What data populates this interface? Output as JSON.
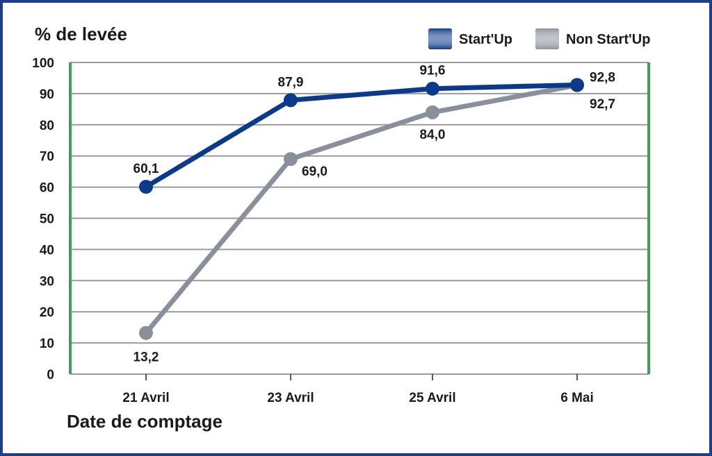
{
  "chart_data": {
    "type": "line",
    "ylabel": "% de levée",
    "xlabel": "Date de comptage",
    "categories": [
      "21 Avril",
      "23 Avril",
      "25 Avril",
      "6 Mai"
    ],
    "ylim": [
      0,
      100
    ],
    "yticks": [
      0,
      10,
      20,
      30,
      40,
      50,
      60,
      70,
      80,
      90,
      100
    ],
    "grid": true,
    "legend_position": "top-right",
    "series": [
      {
        "name": "Start'Up",
        "values": [
          60.1,
          87.9,
          91.6,
          92.8
        ],
        "labels": [
          "60,1",
          "87,9",
          "91,6",
          "92,8"
        ],
        "color": "#0b3a8a"
      },
      {
        "name": "Non Start'Up",
        "values": [
          13.2,
          69.0,
          84.0,
          92.7
        ],
        "labels": [
          "13,2",
          "69,0",
          "84,0",
          "92,7"
        ],
        "color": "#8a9099"
      }
    ],
    "colors": {
      "frame": "#1b3f8c",
      "side_axes": "#3aa05a",
      "grid": "#9a9a9a"
    }
  }
}
